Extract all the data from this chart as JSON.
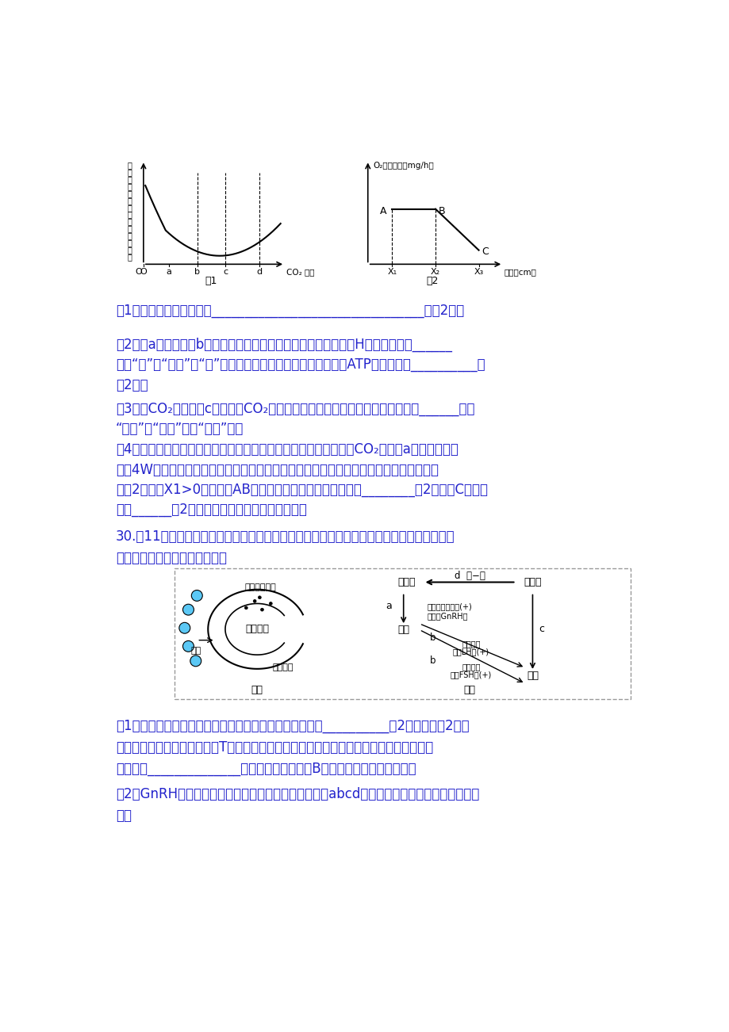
{
  "bg_color": "#ffffff",
  "text_color": "#2222cc",
  "diagram_color": "#000000",
  "fig1_ylabel_lines": [
    "小",
    "圆",
    "片",
    "上",
    "浮",
    "到",
    "液",
    "面",
    "所",
    "需",
    "平",
    "均",
    "时",
    "间"
  ],
  "fig1_xticks": [
    "O",
    "a",
    "b",
    "c",
    "d"
  ],
  "fig1_label": "图1",
  "fig2_ylabel": "O₂释放速率（mg/h）",
  "fig2_xlabel": "距离（cm）",
  "fig2_xticks": [
    "X₁",
    "X₂",
    "X₃"
  ],
  "fig2_label": "图2",
  "q1": "（1）该实验的目的是探究________________________________。（2分）",
  "q2_part1": "（2）与a浓度相比，b浓度时小叶圆片叶肉细胞的类囊体薄膜上［H］的生成速率______",
  "q2_part2": "（填“快”、“相等”或“慢”），此时小圆片的叶肉细胞中能产生ATP的细胞器有__________。",
  "q2_part3": "（2分）",
  "q3_part1": "（3）当CO₂浓度大于c时，随着CO₂浓度的增大，小叶圆片中有机物的积累速率______（填",
  "q3_part2": "“加快”、“不变”、或“减慢”）。",
  "q4_part1": "（4）另取若干相同的小叶圆片分别置于温度保持相同且适宜，溶液CO₂浓度为a的小烧杯中，",
  "q4_part2": "选用4W的台灯作为光源，通过改变光源与小烧杯之间的距离进行实验，根据实验结果绘制",
  "q4_part3": "成图2曲线（X1>0）。限制AB段净光合速率的主要外界因素是________（2分），C点的含",
  "q4_part4": "义是______（2分）时光源与小烧杯之间的距离。",
  "q30_intro1": "30.（11分）下图甲是人体稳态调节的部分示意图，图乙是睾丸酮（雄性激素）的调节机制示",
  "q30_intro2": "意图，请根据图回答下列问题：",
  "q30_q1_part1": "（1）由图甲可知，在机体稳态调节过程中，细胞间可通过__________（2分，至少填2项）",
  "q30_q1_part2": "等信息分子进行信息交流。当T细胞活性下降时，会引起机体生成抗体的能力降低，其主要",
  "q30_q1_part3": "原因是：______________分泌量减少，不利于B细胞增殖分化成浆细胞。。",
  "q30_q2": "（2）GnRH与睾丸酮在化学本质上的差异是：。图乙中abcd过程体现了雄性激素分泌的调节机",
  "q30_q2b": "制。"
}
